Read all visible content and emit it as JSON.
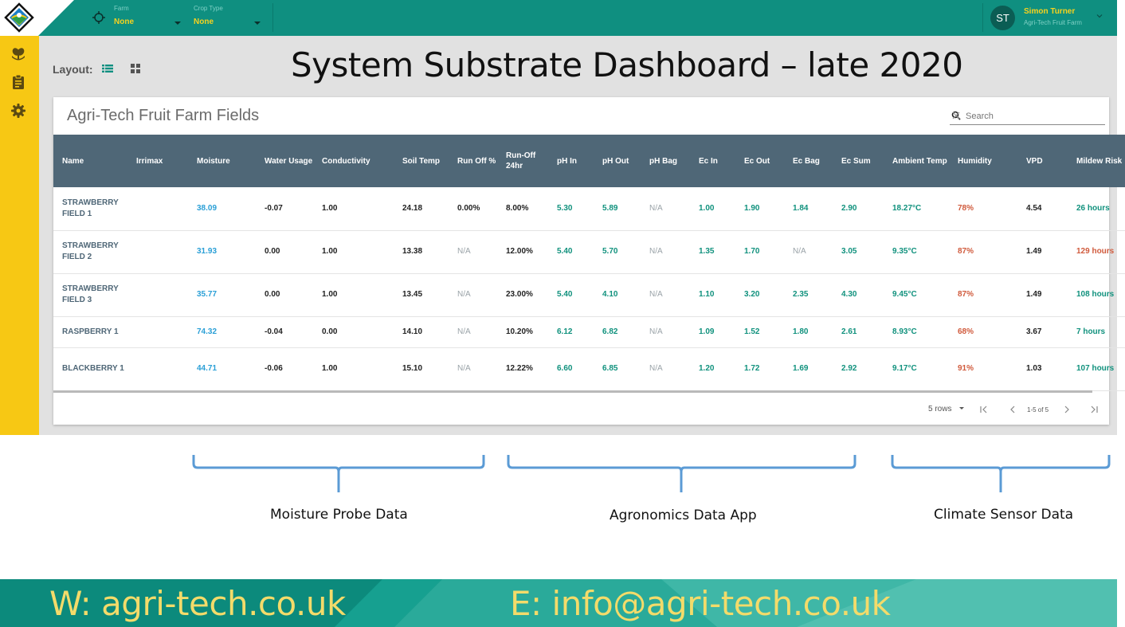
{
  "topbar": {
    "farm_label": "Farm",
    "farm_value": "None",
    "crop_label": "Crop Type",
    "crop_value": "None",
    "user_initials": "ST",
    "user_name": "Simon Turner",
    "user_org": "Agri-Tech Fruit Farm",
    "icons": [
      "logo-icon",
      "target-icon",
      "chevron-down-icon"
    ]
  },
  "sidebar": {
    "icons": [
      "plant-icon",
      "clipboard-icon",
      "gear-icon"
    ]
  },
  "layout": {
    "label": "Layout:",
    "icons": [
      "list-view-icon",
      "grid-view-icon"
    ]
  },
  "page_title": "System Substrate Dashboard – late 2020",
  "card": {
    "title": "Agri-Tech Fruit Farm Fields",
    "search_placeholder": "Search"
  },
  "table": {
    "headers": [
      "Name",
      "Irrimax",
      "Moisture",
      "Water Usage",
      "Conductivity",
      "Soil Temp",
      "Run Off %",
      "Run-Off 24hr",
      "pH In",
      "pH Out",
      "pH Bag",
      "Ec In",
      "Ec Out",
      "Ec Bag",
      "Ec Sum",
      "Ambient Temp",
      "Humidity",
      "VPD",
      "Mildew Risk"
    ],
    "rows": [
      {
        "name": "STRAWBERRY FIELD 1",
        "irrimax": "",
        "moisture": "38.09",
        "water_usage": "-0.07",
        "conductivity": "1.00",
        "soil_temp": "24.18",
        "run_off": "0.00%",
        "run_off_24": "8.00%",
        "ph_in": "5.30",
        "ph_out": "5.89",
        "ph_bag": "N/A",
        "ec_in": "1.00",
        "ec_out": "1.90",
        "ec_bag": "1.84",
        "ec_sum": "2.90",
        "ambient": "18.27°C",
        "humidity": "78%",
        "vpd": "4.54",
        "mildew": "26 hours",
        "mildew_status": "green"
      },
      {
        "name": "STRAWBERRY FIELD 2",
        "irrimax": "",
        "moisture": "31.93",
        "water_usage": "0.00",
        "conductivity": "1.00",
        "soil_temp": "13.38",
        "run_off": "N/A",
        "run_off_24": "12.00%",
        "ph_in": "5.40",
        "ph_out": "5.70",
        "ph_bag": "N/A",
        "ec_in": "1.35",
        "ec_out": "1.70",
        "ec_bag": "N/A",
        "ec_sum": "3.05",
        "ambient": "9.35°C",
        "humidity": "87%",
        "vpd": "1.49",
        "mildew": "129 hours",
        "mildew_status": "red"
      },
      {
        "name": "STRAWBERRY FIELD 3",
        "irrimax": "",
        "moisture": "35.77",
        "water_usage": "0.00",
        "conductivity": "1.00",
        "soil_temp": "13.45",
        "run_off": "N/A",
        "run_off_24": "23.00%",
        "ph_in": "5.40",
        "ph_out": "4.10",
        "ph_bag": "N/A",
        "ec_in": "1.10",
        "ec_out": "3.20",
        "ec_bag": "2.35",
        "ec_sum": "4.30",
        "ambient": "9.45°C",
        "humidity": "87%",
        "vpd": "1.49",
        "mildew": "108 hours",
        "mildew_status": "green"
      },
      {
        "name": "RASPBERRY 1",
        "irrimax": "",
        "moisture": "74.32",
        "water_usage": "-0.04",
        "conductivity": "0.00",
        "soil_temp": "14.10",
        "run_off": "N/A",
        "run_off_24": "10.20%",
        "ph_in": "6.12",
        "ph_out": "6.82",
        "ph_bag": "N/A",
        "ec_in": "1.09",
        "ec_out": "1.52",
        "ec_bag": "1.80",
        "ec_sum": "2.61",
        "ambient": "8.93°C",
        "humidity": "68%",
        "vpd": "3.67",
        "mildew": "7 hours",
        "mildew_status": "green"
      },
      {
        "name": "BLACKBERRY 1",
        "irrimax": "",
        "moisture": "44.71",
        "water_usage": "-0.06",
        "conductivity": "1.00",
        "soil_temp": "15.10",
        "run_off": "N/A",
        "run_off_24": "12.22%",
        "ph_in": "6.60",
        "ph_out": "6.85",
        "ph_bag": "N/A",
        "ec_in": "1.20",
        "ec_out": "1.72",
        "ec_bag": "1.69",
        "ec_sum": "2.92",
        "ambient": "9.17°C",
        "humidity": "91%",
        "vpd": "1.03",
        "mildew": "107 hours",
        "mildew_status": "green"
      }
    ]
  },
  "pagination": {
    "rows_label": "5 rows",
    "range_label": "1-5 of 5"
  },
  "annotations": {
    "moisture": "Moisture Probe Data",
    "agronomics": "Agronomics Data App",
    "climate": "Climate Sensor Data"
  },
  "footer": {
    "website": "W: agri-tech.co.uk",
    "email": "E: info@agri-tech.co.uk"
  },
  "colors": {
    "topbar": "#0f8f80",
    "sidebar": "#f7c814",
    "table_header": "#4f6777",
    "value_green": "#10917d",
    "value_red": "#d05a3c",
    "moisture_blue": "#2a9fd6",
    "footer_text": "#f3db6a"
  }
}
